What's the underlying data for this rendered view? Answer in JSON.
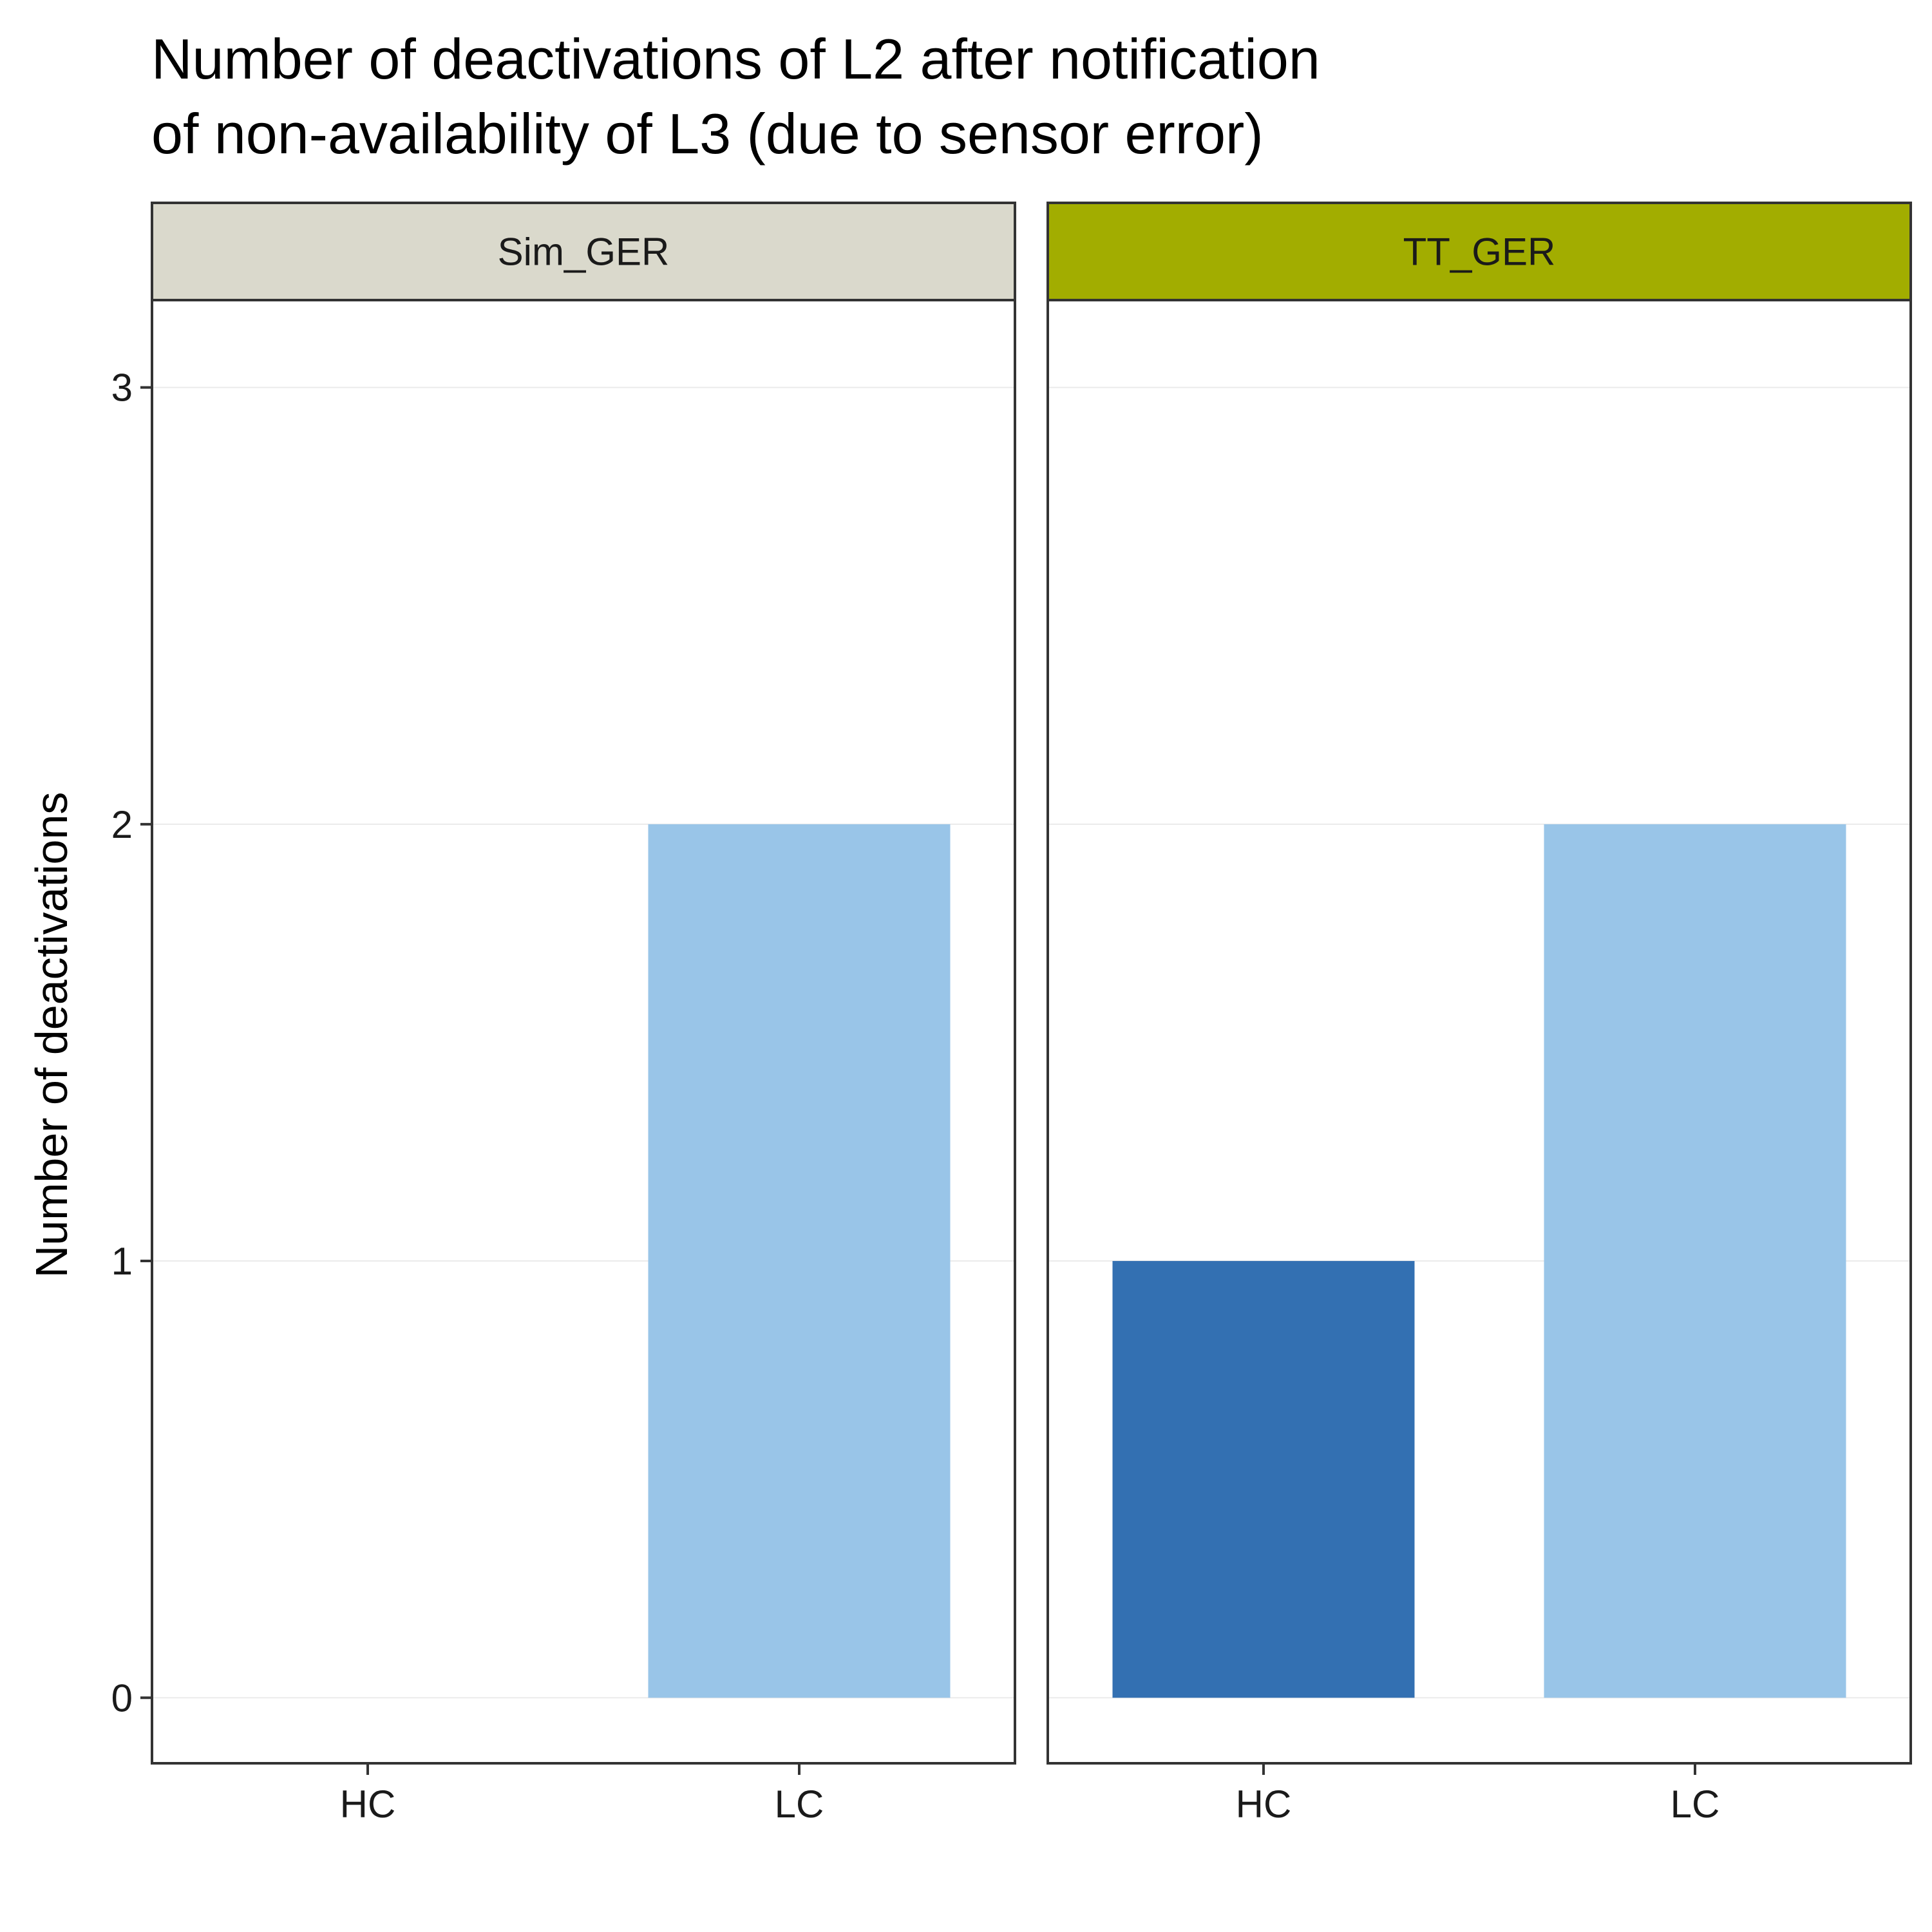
{
  "chart_data": {
    "type": "bar",
    "title_lines": [
      "Number of deactivations of L2 after notification",
      "of non-availability of L3 (due to sensor error)"
    ],
    "xlabel": "",
    "ylabel": "Number of deactivations",
    "ylim": [
      -0.15,
      3.2
    ],
    "yticks": [
      0,
      1,
      2,
      3
    ],
    "grid": true,
    "legend": "none",
    "categories": [
      "HC",
      "LC"
    ],
    "category_colors": {
      "HC": "#3370B2",
      "LC": "#99C5E8"
    },
    "panels": [
      {
        "name": "Sim_GER",
        "strip_color": "#DAD9CC",
        "values": [
          0,
          2
        ]
      },
      {
        "name": "TT_GER",
        "strip_color": "#A2AD00",
        "values": [
          1,
          2
        ]
      }
    ]
  }
}
